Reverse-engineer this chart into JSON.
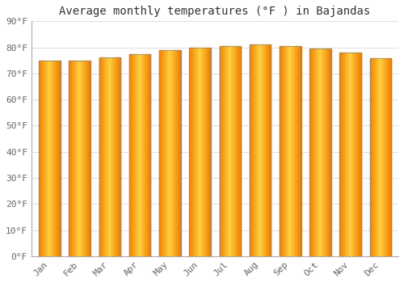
{
  "title": "Average monthly temperatures (°F ) in Bajandas",
  "months": [
    "Jan",
    "Feb",
    "Mar",
    "Apr",
    "May",
    "Jun",
    "Jul",
    "Aug",
    "Sep",
    "Oct",
    "Nov",
    "Dec"
  ],
  "values": [
    74.8,
    74.8,
    76.0,
    77.5,
    79.0,
    80.0,
    80.5,
    81.0,
    80.5,
    79.5,
    78.0,
    75.8
  ],
  "bar_color_center": "#FFD044",
  "bar_color_edge": "#F08000",
  "bar_edge_color": "#888888",
  "ylim": [
    0,
    90
  ],
  "yticks": [
    0,
    10,
    20,
    30,
    40,
    50,
    60,
    70,
    80,
    90
  ],
  "ytick_labels": [
    "0°F",
    "10°F",
    "20°F",
    "30°F",
    "40°F",
    "50°F",
    "60°F",
    "70°F",
    "80°F",
    "90°F"
  ],
  "background_color": "#ffffff",
  "grid_color": "#dddddd",
  "title_fontsize": 10,
  "tick_fontsize": 8,
  "font_family": "monospace"
}
